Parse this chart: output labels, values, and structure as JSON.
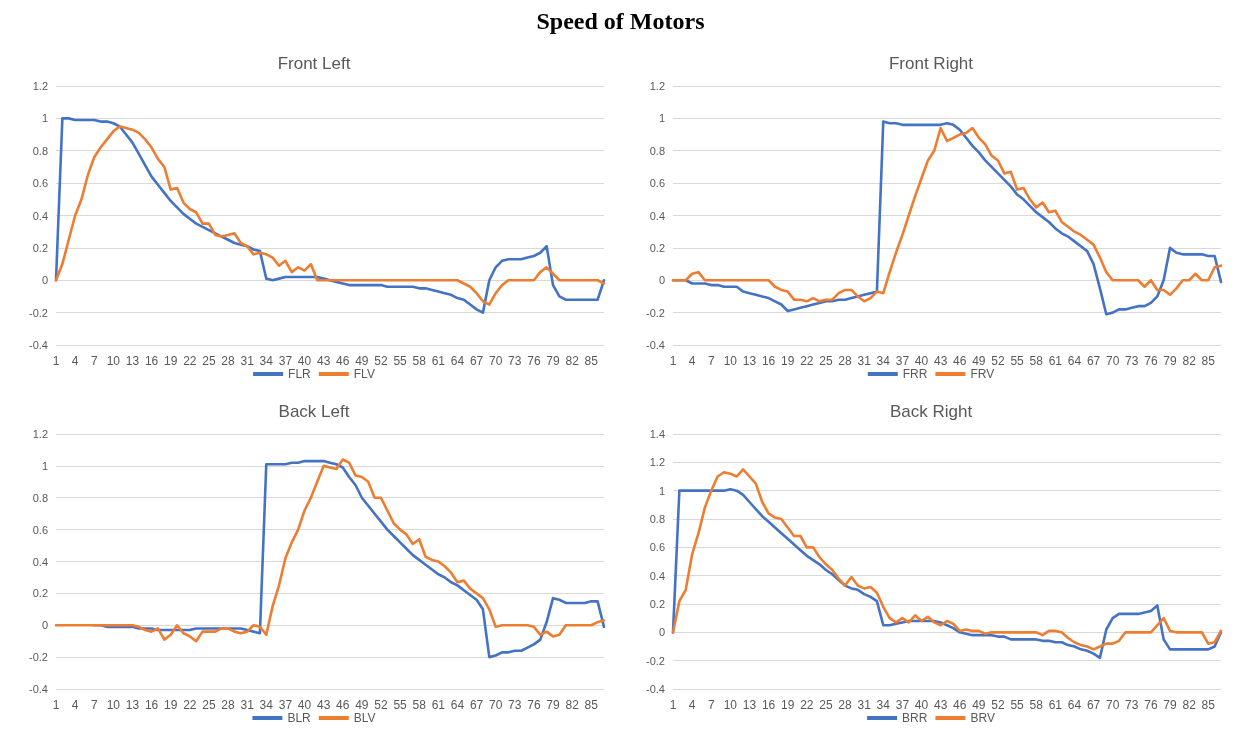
{
  "chart_data": [
    {
      "type": "line",
      "title": "Front Left",
      "annotations": [
        "Speed of Motors"
      ],
      "categories": [
        "1",
        null,
        null,
        "4",
        null,
        null,
        "7",
        null,
        null,
        "10",
        null,
        null,
        "13",
        null,
        null,
        "16",
        null,
        null,
        "19",
        null,
        null,
        "22",
        null,
        null,
        "25",
        null,
        null,
        "28",
        null,
        null,
        "31",
        null,
        null,
        "34",
        null,
        null,
        "37",
        null,
        null,
        "40",
        null,
        null,
        "43",
        null,
        null,
        "46",
        null,
        null,
        "49",
        null,
        null,
        "52",
        null,
        null,
        "55",
        null,
        null,
        "58",
        null,
        null,
        "61",
        null,
        null,
        "64",
        null,
        null,
        "67",
        null,
        null,
        "70",
        null,
        null,
        "73",
        null,
        null,
        "76",
        null,
        null,
        "79",
        null,
        null,
        "82",
        null,
        null,
        "85",
        null,
        null
      ],
      "series": [
        {
          "name": "FLR",
          "color": "#4472c4",
          "values": [
            0,
            1.0,
            1.0,
            0.99,
            0.99,
            0.99,
            0.99,
            0.98,
            0.98,
            0.97,
            0.95,
            0.9,
            0.85,
            0.78,
            0.71,
            0.64,
            0.59,
            0.54,
            0.49,
            0.45,
            0.41,
            0.38,
            0.35,
            0.33,
            0.31,
            0.29,
            0.27,
            0.25,
            0.23,
            0.22,
            0.21,
            0.19,
            0.18,
            0.01,
            0,
            0.01,
            0.02,
            0.02,
            0.02,
            0.02,
            0.02,
            0.02,
            0.01,
            0,
            -0.01,
            -0.02,
            -0.03,
            -0.03,
            -0.03,
            -0.03,
            -0.03,
            -0.03,
            -0.04,
            -0.04,
            -0.04,
            -0.04,
            -0.04,
            -0.05,
            -0.05,
            -0.06,
            -0.07,
            -0.08,
            -0.09,
            -0.11,
            -0.12,
            -0.15,
            -0.18,
            -0.2,
            0,
            0.08,
            0.12,
            0.13,
            0.13,
            0.13,
            0.14,
            0.15,
            0.17,
            0.21,
            -0.03,
            -0.1,
            -0.12,
            -0.12,
            -0.12,
            -0.12,
            -0.12,
            -0.12,
            0
          ]
        },
        {
          "name": "FLV",
          "color": "#ed7d31",
          "values": [
            0,
            0.1,
            0.25,
            0.4,
            0.5,
            0.65,
            0.76,
            0.82,
            0.87,
            0.92,
            0.95,
            0.94,
            0.93,
            0.91,
            0.87,
            0.82,
            0.75,
            0.7,
            0.56,
            0.57,
            0.48,
            0.44,
            0.42,
            0.35,
            0.35,
            0.28,
            0.27,
            0.28,
            0.29,
            0.23,
            0.21,
            0.16,
            0.17,
            0.16,
            0.14,
            0.09,
            0.12,
            0.05,
            0.08,
            0.06,
            0.1,
            0,
            0,
            0,
            0,
            0,
            0,
            0,
            0,
            0,
            0,
            0,
            0,
            0,
            0,
            0,
            0,
            0,
            0,
            0,
            0,
            0,
            0,
            0,
            -0.02,
            -0.04,
            -0.08,
            -0.13,
            -0.15,
            -0.08,
            -0.03,
            0,
            0,
            0,
            0,
            0,
            0.05,
            0.08,
            0.04,
            0,
            0,
            0,
            0,
            0,
            0,
            0,
            -0.02
          ]
        }
      ],
      "ylim": [
        -0.4,
        1.2
      ],
      "yticks": [
        -0.4,
        -0.2,
        0,
        0.2,
        0.4,
        0.6,
        0.8,
        1,
        1.2
      ],
      "grid": "y",
      "legend": "bottom",
      "marker": "none",
      "line_style": "solid"
    },
    {
      "type": "line",
      "title": "Front Right",
      "categories": [
        "1",
        null,
        null,
        "4",
        null,
        null,
        "7",
        null,
        null,
        "10",
        null,
        null,
        "13",
        null,
        null,
        "16",
        null,
        null,
        "19",
        null,
        null,
        "22",
        null,
        null,
        "25",
        null,
        null,
        "28",
        null,
        null,
        "31",
        null,
        null,
        "34",
        null,
        null,
        "37",
        null,
        null,
        "40",
        null,
        null,
        "43",
        null,
        null,
        "46",
        null,
        null,
        "49",
        null,
        null,
        "52",
        null,
        null,
        "55",
        null,
        null,
        "58",
        null,
        null,
        "61",
        null,
        null,
        "64",
        null,
        null,
        "67",
        null,
        null,
        "70",
        null,
        null,
        "73",
        null,
        null,
        "76",
        null,
        null,
        "79",
        null,
        null,
        "82",
        null,
        null,
        "85",
        null,
        null
      ],
      "series": [
        {
          "name": "FRR",
          "color": "#4472c4",
          "values": [
            0,
            0,
            0,
            -0.02,
            -0.02,
            -0.02,
            -0.03,
            -0.03,
            -0.04,
            -0.04,
            -0.04,
            -0.07,
            -0.08,
            -0.09,
            -0.1,
            -0.11,
            -0.13,
            -0.15,
            -0.19,
            -0.18,
            -0.17,
            -0.16,
            -0.15,
            -0.14,
            -0.13,
            -0.13,
            -0.12,
            -0.12,
            -0.11,
            -0.1,
            -0.09,
            -0.08,
            -0.07,
            0.98,
            0.97,
            0.97,
            0.96,
            0.96,
            0.96,
            0.96,
            0.96,
            0.96,
            0.96,
            0.97,
            0.96,
            0.93,
            0.88,
            0.83,
            0.79,
            0.74,
            0.7,
            0.66,
            0.62,
            0.58,
            0.53,
            0.5,
            0.46,
            0.42,
            0.39,
            0.36,
            0.32,
            0.29,
            0.27,
            0.24,
            0.21,
            0.18,
            0.1,
            -0.05,
            -0.21,
            -0.2,
            -0.18,
            -0.18,
            -0.17,
            -0.16,
            -0.16,
            -0.14,
            -0.1,
            0,
            0.2,
            0.17,
            0.16,
            0.16,
            0.16,
            0.16,
            0.15,
            0.15,
            -0.01
          ]
        },
        {
          "name": "FRV",
          "color": "#ed7d31",
          "values": [
            0,
            0,
            0,
            0.04,
            0.05,
            0,
            0,
            0,
            0,
            0,
            0,
            0,
            0,
            0,
            0,
            0,
            -0.04,
            -0.06,
            -0.07,
            -0.12,
            -0.12,
            -0.13,
            -0.11,
            -0.13,
            -0.12,
            -0.12,
            -0.08,
            -0.06,
            -0.06,
            -0.1,
            -0.13,
            -0.11,
            -0.07,
            -0.08,
            0.05,
            0.17,
            0.28,
            0.4,
            0.52,
            0.63,
            0.74,
            0.8,
            0.94,
            0.86,
            0.88,
            0.9,
            0.91,
            0.94,
            0.88,
            0.84,
            0.77,
            0.74,
            0.66,
            0.67,
            0.56,
            0.57,
            0.5,
            0.45,
            0.48,
            0.42,
            0.43,
            0.36,
            0.33,
            0.3,
            0.28,
            0.25,
            0.22,
            0.14,
            0.05,
            0,
            0,
            0,
            0,
            0,
            -0.04,
            0,
            -0.06,
            -0.06,
            -0.09,
            -0.05,
            0,
            0,
            0.04,
            0,
            0,
            0.08,
            0.09
          ]
        }
      ],
      "ylim": [
        -0.4,
        1.2
      ],
      "yticks": [
        -0.4,
        -0.2,
        0,
        0.2,
        0.4,
        0.6,
        0.8,
        1,
        1.2
      ],
      "grid": "y",
      "legend": "bottom",
      "marker": "none",
      "line_style": "solid"
    },
    {
      "type": "line",
      "title": "Back Left",
      "categories": [
        "1",
        null,
        null,
        "4",
        null,
        null,
        "7",
        null,
        null,
        "10",
        null,
        null,
        "13",
        null,
        null,
        "16",
        null,
        null,
        "19",
        null,
        null,
        "22",
        null,
        null,
        "25",
        null,
        null,
        "28",
        null,
        null,
        "31",
        null,
        null,
        "34",
        null,
        null,
        "37",
        null,
        null,
        "40",
        null,
        null,
        "43",
        null,
        null,
        "46",
        null,
        null,
        "49",
        null,
        null,
        "52",
        null,
        null,
        "55",
        null,
        null,
        "58",
        null,
        null,
        "61",
        null,
        null,
        "64",
        null,
        null,
        "67",
        null,
        null,
        "70",
        null,
        null,
        "73",
        null,
        null,
        "76",
        null,
        null,
        "79",
        null,
        null,
        "82",
        null,
        null,
        "85",
        null,
        null
      ],
      "series": [
        {
          "name": "BLR",
          "color": "#4472c4",
          "values": [
            null,
            null,
            null,
            null,
            null,
            null,
            0,
            0,
            -0.01,
            -0.01,
            -0.01,
            -0.01,
            -0.01,
            -0.02,
            -0.02,
            -0.02,
            -0.03,
            -0.03,
            -0.03,
            -0.03,
            -0.03,
            -0.03,
            -0.02,
            -0.02,
            -0.02,
            -0.02,
            -0.02,
            -0.02,
            -0.02,
            -0.02,
            -0.03,
            -0.04,
            -0.05,
            1.01,
            1.01,
            1.01,
            1.01,
            1.02,
            1.02,
            1.03,
            1.03,
            1.03,
            1.03,
            1.02,
            1.01,
            0.99,
            0.93,
            0.88,
            0.8,
            0.75,
            0.7,
            0.65,
            0.6,
            0.56,
            0.52,
            0.48,
            0.44,
            0.41,
            0.38,
            0.35,
            0.32,
            0.3,
            0.27,
            0.25,
            0.22,
            0.19,
            0.16,
            0.1,
            -0.2,
            -0.19,
            -0.17,
            -0.17,
            -0.16,
            -0.16,
            -0.14,
            -0.12,
            -0.09,
            0.02,
            0.17,
            0.16,
            0.14,
            0.14,
            0.14,
            0.14,
            0.15,
            0.15,
            -0.01
          ]
        },
        {
          "name": "BLV",
          "color": "#ed7d31",
          "values": [
            0,
            0,
            0,
            0,
            0,
            0,
            0,
            0,
            0,
            0,
            0,
            0,
            0,
            -0.01,
            -0.03,
            -0.04,
            -0.02,
            -0.09,
            -0.06,
            0,
            -0.05,
            -0.07,
            -0.1,
            -0.04,
            -0.04,
            -0.04,
            -0.02,
            -0.02,
            -0.04,
            -0.05,
            -0.04,
            0,
            -0.01,
            -0.06,
            0.12,
            0.25,
            0.42,
            0.52,
            0.6,
            0.72,
            0.8,
            0.9,
            1.0,
            0.99,
            0.98,
            1.04,
            1.02,
            0.94,
            0.93,
            0.9,
            0.8,
            0.8,
            0.72,
            0.64,
            0.6,
            0.57,
            0.51,
            0.54,
            0.43,
            0.41,
            0.4,
            0.37,
            0.33,
            0.27,
            0.28,
            0.23,
            0.2,
            0.17,
            0.1,
            -0.01,
            0,
            0,
            0,
            0,
            0,
            -0.01,
            -0.06,
            -0.04,
            -0.07,
            -0.06,
            0,
            0,
            0,
            0,
            0,
            0.02,
            0.03
          ]
        }
      ],
      "ylim": [
        -0.4,
        1.2
      ],
      "yticks": [
        -0.4,
        -0.2,
        0,
        0.2,
        0.4,
        0.6,
        0.8,
        1,
        1.2
      ],
      "grid": "y",
      "legend": "bottom",
      "marker": "none",
      "line_style": "solid"
    },
    {
      "type": "line",
      "title": "Back Right",
      "categories": [
        "1",
        null,
        null,
        "4",
        null,
        null,
        "7",
        null,
        null,
        "10",
        null,
        null,
        "13",
        null,
        null,
        "16",
        null,
        null,
        "19",
        null,
        null,
        "22",
        null,
        null,
        "25",
        null,
        null,
        "28",
        null,
        null,
        "31",
        null,
        null,
        "34",
        null,
        null,
        "37",
        null,
        null,
        "40",
        null,
        null,
        "43",
        null,
        null,
        "46",
        null,
        null,
        "49",
        null,
        null,
        "52",
        null,
        null,
        "55",
        null,
        null,
        "58",
        null,
        null,
        "61",
        null,
        null,
        "64",
        null,
        null,
        "67",
        null,
        null,
        "70",
        null,
        null,
        "73",
        null,
        null,
        "76",
        null,
        null,
        "79",
        null,
        null,
        "82",
        null,
        null,
        "85",
        null,
        null
      ],
      "series": [
        {
          "name": "BRR",
          "color": "#4472c4",
          "values": [
            0,
            1.0,
            1.0,
            1.0,
            1.0,
            1.0,
            1.0,
            1.0,
            1.0,
            1.01,
            1.0,
            0.97,
            0.92,
            0.87,
            0.82,
            0.78,
            0.74,
            0.7,
            0.66,
            0.62,
            0.58,
            0.54,
            0.51,
            0.48,
            0.44,
            0.41,
            0.37,
            0.33,
            0.31,
            0.3,
            0.27,
            0.25,
            0.22,
            0.05,
            0.05,
            0.06,
            0.07,
            0.08,
            0.08,
            0.08,
            0.08,
            0.08,
            0.07,
            0.05,
            0.03,
            0,
            -0.01,
            -0.02,
            -0.02,
            -0.02,
            -0.02,
            -0.03,
            -0.03,
            -0.05,
            -0.05,
            -0.05,
            -0.05,
            -0.05,
            -0.06,
            -0.06,
            -0.07,
            -0.07,
            -0.09,
            -0.1,
            -0.12,
            -0.13,
            -0.15,
            -0.18,
            0.02,
            0.1,
            0.13,
            0.13,
            0.13,
            0.13,
            0.14,
            0.15,
            0.19,
            -0.05,
            -0.12,
            -0.12,
            -0.12,
            -0.12,
            -0.12,
            -0.12,
            -0.12,
            -0.1,
            0
          ]
        },
        {
          "name": "BRV",
          "color": "#ed7d31",
          "values": [
            0,
            0.22,
            0.3,
            0.55,
            0.7,
            0.88,
            1.0,
            1.1,
            1.13,
            1.12,
            1.1,
            1.15,
            1.1,
            1.05,
            0.92,
            0.84,
            0.81,
            0.8,
            0.74,
            0.68,
            0.68,
            0.6,
            0.6,
            0.53,
            0.48,
            0.44,
            0.38,
            0.33,
            0.39,
            0.33,
            0.31,
            0.32,
            0.28,
            0.18,
            0.1,
            0.07,
            0.1,
            0.07,
            0.12,
            0.08,
            0.11,
            0.07,
            0.05,
            0.08,
            0.06,
            0.01,
            0.02,
            0.01,
            0.01,
            -0.01,
            0,
            0,
            0,
            0,
            0,
            0,
            0,
            0,
            -0.02,
            0.01,
            0.01,
            0,
            -0.04,
            -0.07,
            -0.09,
            -0.1,
            -0.12,
            -0.1,
            -0.08,
            -0.08,
            -0.06,
            0,
            0,
            0,
            0,
            0,
            0.05,
            0.1,
            0.01,
            0,
            0,
            0,
            0,
            0,
            -0.08,
            -0.07,
            0.01
          ]
        }
      ],
      "ylim": [
        -0.4,
        1.4
      ],
      "yticks": [
        -0.4,
        -0.2,
        0,
        0.2,
        0.4,
        0.6,
        0.8,
        1,
        1.2,
        1.4
      ],
      "grid": "y",
      "legend": "bottom",
      "marker": "none",
      "line_style": "solid"
    }
  ]
}
